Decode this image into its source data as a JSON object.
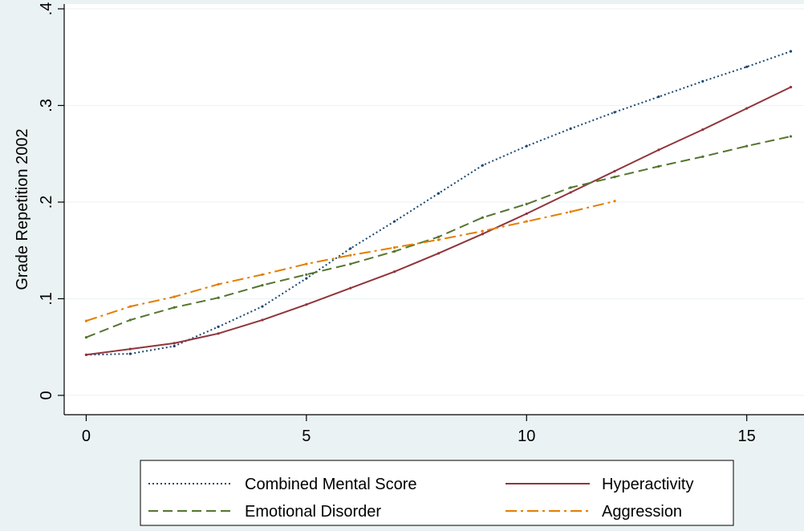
{
  "chart_data": {
    "type": "line",
    "title": "",
    "xlabel": "",
    "ylabel": "Grade Repetition 2002",
    "xlim": [
      -0.5,
      16.3
    ],
    "ylim": [
      -0.02,
      0.405
    ],
    "x_ticks": [
      0,
      5,
      10,
      15
    ],
    "x_tick_labels": [
      "0",
      "5",
      "10",
      "15"
    ],
    "y_ticks": [
      0,
      0.1,
      0.2,
      0.3,
      0.4
    ],
    "y_tick_labels": [
      "0",
      ".1",
      ".2",
      ".3",
      ".4"
    ],
    "grid": true,
    "legend_position": "bottom",
    "series": [
      {
        "name": "Combined Mental Score",
        "color": "#1a476f",
        "dash": "dotted",
        "x": [
          0,
          1,
          2,
          3,
          4,
          5,
          6,
          7,
          8,
          9,
          10,
          11,
          12,
          13,
          14,
          15,
          16
        ],
        "y": [
          0.042,
          0.043,
          0.051,
          0.071,
          0.092,
          0.121,
          0.152,
          0.18,
          0.209,
          0.238,
          0.258,
          0.276,
          0.293,
          0.309,
          0.325,
          0.34,
          0.356
        ]
      },
      {
        "name": "Hyperactivity",
        "color": "#90353b",
        "dash": "solid",
        "x": [
          0,
          1,
          2,
          3,
          4,
          5,
          6,
          7,
          8,
          9,
          10,
          11,
          12,
          13,
          14,
          15,
          16
        ],
        "y": [
          0.042,
          0.048,
          0.054,
          0.064,
          0.078,
          0.094,
          0.111,
          0.128,
          0.147,
          0.167,
          0.188,
          0.21,
          0.232,
          0.254,
          0.275,
          0.297,
          0.319
        ]
      },
      {
        "name": "Emotional Disorder",
        "color": "#55752f",
        "dash": "dashed",
        "x": [
          0,
          1,
          2,
          3,
          4,
          5,
          6,
          7,
          8,
          9,
          10,
          11,
          12,
          13,
          14,
          15,
          16
        ],
        "y": [
          0.06,
          0.078,
          0.091,
          0.101,
          0.114,
          0.125,
          0.136,
          0.149,
          0.164,
          0.184,
          0.198,
          0.215,
          0.226,
          0.237,
          0.247,
          0.258,
          0.268
        ]
      },
      {
        "name": "Aggression",
        "color": "#e37e00",
        "dash": "dashdot",
        "x": [
          0,
          1,
          2,
          3,
          4,
          5,
          6,
          7,
          8,
          9,
          10,
          11,
          12
        ],
        "y": [
          0.077,
          0.092,
          0.102,
          0.115,
          0.125,
          0.136,
          0.145,
          0.153,
          0.161,
          0.17,
          0.18,
          0.19,
          0.201
        ]
      }
    ]
  }
}
